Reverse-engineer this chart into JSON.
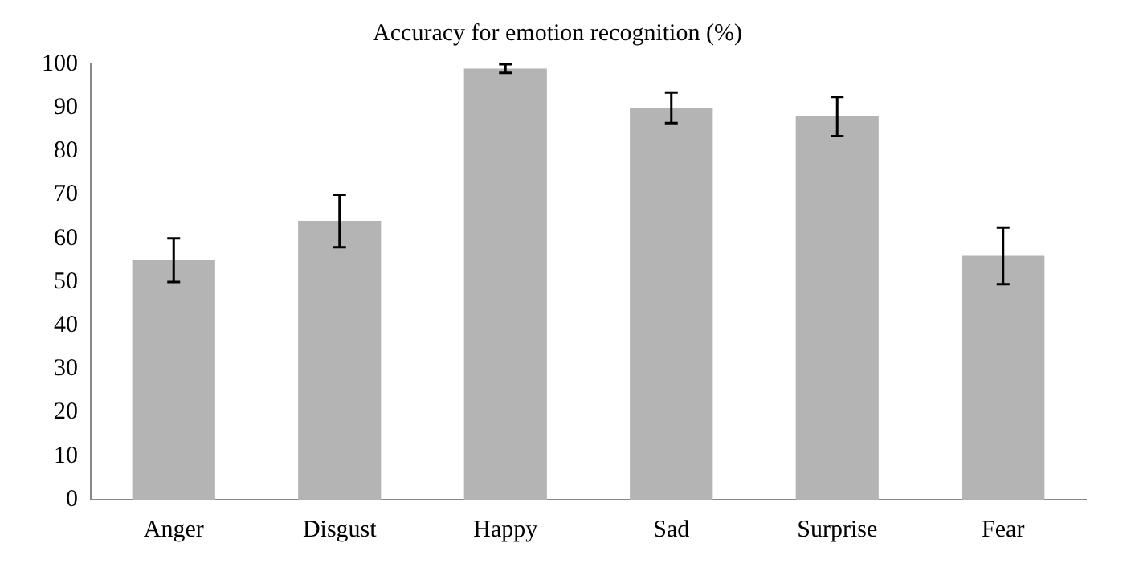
{
  "chart_data": {
    "type": "bar",
    "title": "Accuracy for emotion recognition (%)",
    "categories": [
      "Anger",
      "Disgust",
      "Happy",
      "Sad",
      "Surprise",
      "Fear"
    ],
    "values": [
      55,
      64,
      99,
      90,
      88,
      56
    ],
    "errors": [
      5,
      6,
      1,
      3.5,
      4.5,
      6.5
    ],
    "color": "#b4b4b4",
    "ylim": [
      0,
      100
    ],
    "yticks": [
      0,
      10,
      20,
      30,
      40,
      50,
      60,
      70,
      80,
      90,
      100
    ],
    "grid": false,
    "legend": false
  }
}
